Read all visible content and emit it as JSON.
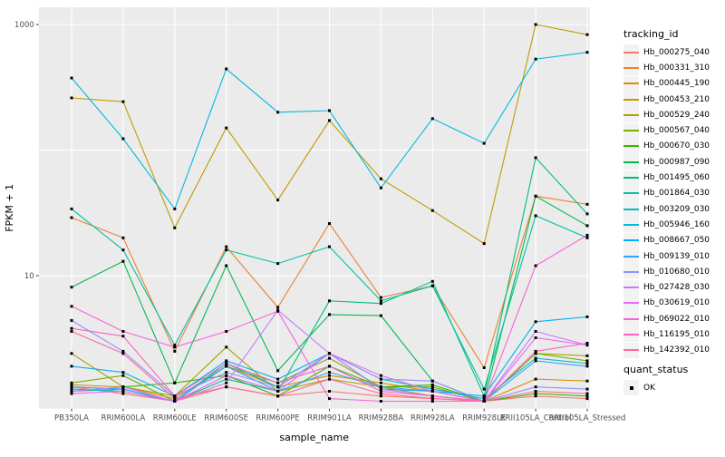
{
  "legend": {
    "title": "tracking_id"
  },
  "legend2": {
    "title": "quant_status",
    "items": [
      {
        "label": "OK"
      }
    ]
  },
  "chart_data": {
    "type": "line",
    "title": "",
    "xlabel": "sample_name",
    "ylabel": "FPKM + 1",
    "y_scale": "log10",
    "ylim": [
      0.73,
      1370
    ],
    "y_tick_labels": [
      {
        "label": "1000",
        "value": 1000
      },
      {
        "label": "10",
        "value": 10
      }
    ],
    "y_gridlines": [
      1000,
      100,
      10
    ],
    "grid": "on",
    "legend_position": "right",
    "point_marker": "black-square",
    "categories": [
      "PB350LA",
      "RRIM600LA",
      "RRIM600LE",
      "RRIM600SE",
      "RRIM600PE",
      "RRIM901LA",
      "RRIM928BA",
      "RRIM928LA",
      "RRIM928LE",
      "RRII105LA_Control",
      "RRII105LA_Stressed"
    ],
    "series": [
      {
        "name": "Hb_000275_040",
        "color": "#F8766D",
        "values": [
          1.3,
          1.15,
          1.0,
          1.3,
          1.1,
          1.2,
          1.1,
          1.05,
          1.0,
          1.1,
          1.05
        ]
      },
      {
        "name": "Hb_000331_310",
        "color": "#EA8331",
        "values": [
          29,
          20,
          2.5,
          17,
          5.6,
          26,
          6.7,
          8.3,
          1.85,
          43,
          37
        ]
      },
      {
        "name": "Hb_000445_190",
        "color": "#D89000",
        "values": [
          1.35,
          1.3,
          1.05,
          1.9,
          1.3,
          1.6,
          1.4,
          1.2,
          1.0,
          1.5,
          1.45
        ]
      },
      {
        "name": "Hb_000453_210",
        "color": "#C09B00",
        "values": [
          260,
          243,
          24,
          150,
          40,
          172,
          59,
          33,
          18,
          1000,
          830
        ]
      },
      {
        "name": "Hb_000529_240",
        "color": "#A3A500",
        "values": [
          2.4,
          1.3,
          1.1,
          2.7,
          1.2,
          1.5,
          1.3,
          1.1,
          1.0,
          2.4,
          2.3
        ]
      },
      {
        "name": "Hb_000567_040",
        "color": "#7CAE00",
        "values": [
          1.4,
          1.6,
          1.0,
          1.9,
          1.4,
          2.2,
          1.3,
          1.3,
          1.0,
          2.4,
          2.1
        ]
      },
      {
        "name": "Hb_000670_030",
        "color": "#39B600",
        "values": [
          1.2,
          1.3,
          1.4,
          1.6,
          1.1,
          1.9,
          1.3,
          1.35,
          1.0,
          1.15,
          1.1
        ]
      },
      {
        "name": "Hb_000987_090",
        "color": "#00BB4E",
        "values": [
          8.1,
          13,
          1.4,
          12,
          1.75,
          4.9,
          4.8,
          1.45,
          1.0,
          43,
          25
        ]
      },
      {
        "name": "Hb_001495_060",
        "color": "#00BF7D",
        "values": [
          1.2,
          1.25,
          1.0,
          1.5,
          1.2,
          6.3,
          6.0,
          9.0,
          1.1,
          87,
          31
        ]
      },
      {
        "name": "Hb_001864_030",
        "color": "#00C1A3",
        "values": [
          34,
          16,
          2.8,
          16,
          12.5,
          17,
          6.3,
          8.3,
          1.25,
          30,
          20
        ]
      },
      {
        "name": "Hb_003209_030",
        "color": "#00BFC4",
        "values": [
          1.25,
          1.2,
          1.0,
          2.0,
          1.3,
          2.4,
          1.5,
          1.25,
          1.05,
          2.2,
          2.0
        ]
      },
      {
        "name": "Hb_005946_160",
        "color": "#00BAE0",
        "values": [
          375,
          123,
          34,
          443,
          200,
          206,
          50,
          178,
          113,
          530,
          600
        ]
      },
      {
        "name": "Hb_008667_050",
        "color": "#00B0F6",
        "values": [
          1.9,
          1.7,
          1.1,
          2.1,
          1.5,
          2.4,
          1.25,
          1.2,
          1.1,
          4.3,
          4.7
        ]
      },
      {
        "name": "Hb_009139_010",
        "color": "#35A2FF",
        "values": [
          1.3,
          1.25,
          1.0,
          1.9,
          1.2,
          1.7,
          1.3,
          1.2,
          1.0,
          2.1,
          1.9
        ]
      },
      {
        "name": "Hb_010680_010",
        "color": "#9590FF",
        "values": [
          4.4,
          2.5,
          1.1,
          1.7,
          1.3,
          2.4,
          1.5,
          1.45,
          1.0,
          1.3,
          1.25
        ]
      },
      {
        "name": "Hb_027428_030",
        "color": "#C77CFF",
        "values": [
          1.2,
          1.3,
          1.0,
          1.4,
          5.3,
          2.4,
          1.25,
          1.1,
          1.0,
          3.6,
          2.8
        ]
      },
      {
        "name": "Hb_030619_010",
        "color": "#E76BF3",
        "values": [
          1.15,
          1.2,
          1.0,
          1.6,
          1.2,
          2.4,
          1.6,
          1.2,
          1.0,
          3.2,
          2.8
        ]
      },
      {
        "name": "Hb_069022_010",
        "color": "#FA62DB",
        "values": [
          5.7,
          3.6,
          2.7,
          3.6,
          5.2,
          1.05,
          1.0,
          1.0,
          1.0,
          12,
          21
        ]
      },
      {
        "name": "Hb_116195_010",
        "color": "#FF62BC",
        "values": [
          3.8,
          3.3,
          1.1,
          2.0,
          1.4,
          1.9,
          1.2,
          1.1,
          1.0,
          2.5,
          2.9
        ]
      },
      {
        "name": "Hb_142392_010",
        "color": "#FF6A98",
        "values": [
          3.6,
          2.4,
          1.05,
          1.3,
          1.1,
          1.5,
          1.15,
          1.05,
          1.0,
          1.2,
          1.15
        ]
      }
    ]
  }
}
